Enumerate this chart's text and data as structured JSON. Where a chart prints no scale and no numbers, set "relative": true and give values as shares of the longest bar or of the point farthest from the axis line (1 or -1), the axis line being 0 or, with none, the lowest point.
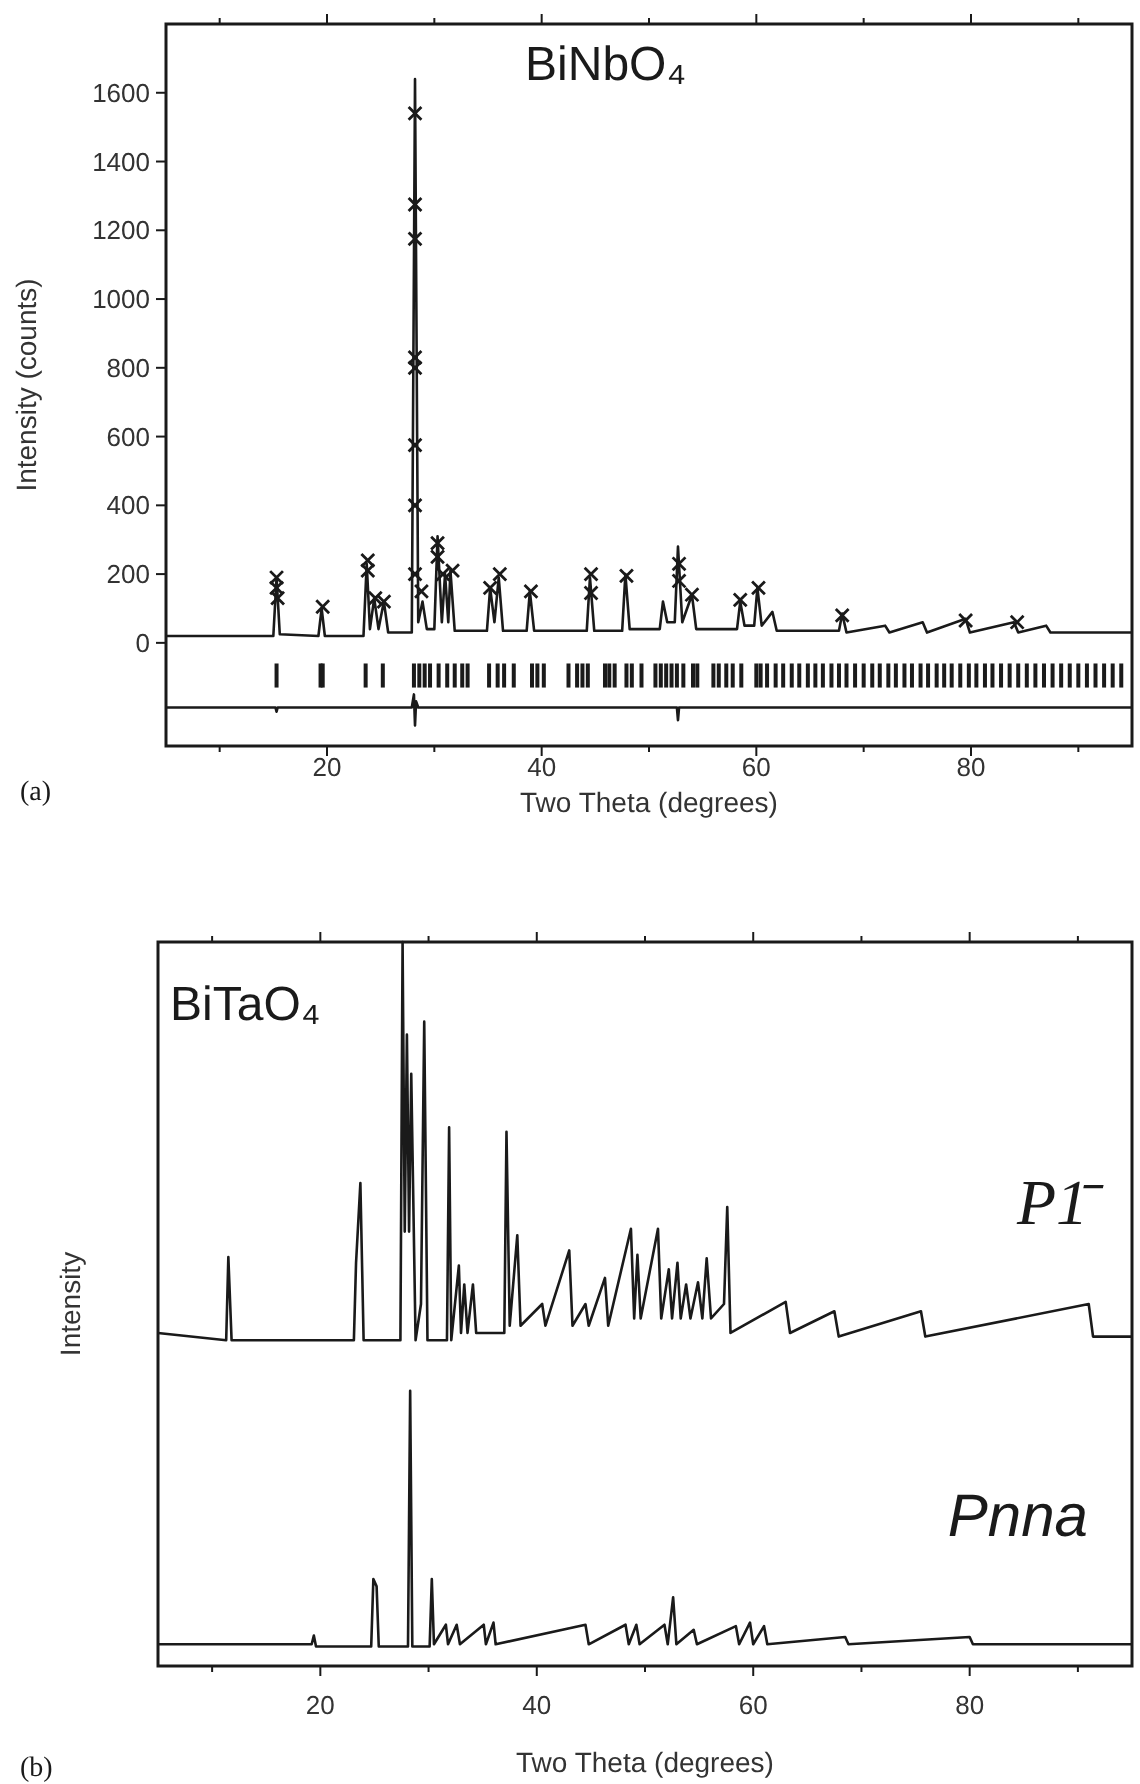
{
  "chart_data": [
    {
      "type": "line",
      "title": "BiNbO₄",
      "xlabel": "Two Theta (degrees)",
      "ylabel": "Intensity (counts)",
      "annotations": [
        "(a)"
      ],
      "xlim": [
        5,
        95
      ],
      "xticks": [
        {
          "value": 10,
          "label": null
        },
        20,
        {
          "value": 30,
          "label": null
        },
        40,
        {
          "value": 50,
          "label": null
        },
        60,
        {
          "value": 70,
          "label": null
        },
        80,
        {
          "value": 90,
          "label": null
        }
      ],
      "ylim": [
        -300,
        1800
      ],
      "yticks": [
        0,
        200,
        400,
        600,
        800,
        1000,
        1200,
        1400,
        1600
      ],
      "series": [
        {
          "type": "scatter",
          "marker": "cross",
          "color": "#1a1a1a",
          "x": [
            15.3,
            15.3,
            15.4,
            19.6,
            23.8,
            23.8,
            24.5,
            25.3,
            28.2,
            28.2,
            28.2,
            28.2,
            28.2,
            28.2,
            28.2,
            28.2,
            28.8,
            30.3,
            30.3,
            30.8,
            31.7,
            35.2,
            36.1,
            39.0,
            44.6,
            44.6,
            47.9,
            52.8,
            52.8,
            54.0,
            58.5,
            60.2,
            68.0,
            79.5,
            84.3
          ],
          "values": [
            190,
            160,
            130,
            105,
            240,
            210,
            130,
            120,
            1540,
            1275,
            1175,
            830,
            800,
            575,
            400,
            200,
            150,
            290,
            250,
            200,
            210,
            160,
            200,
            150,
            200,
            145,
            195,
            230,
            180,
            140,
            125,
            160,
            80,
            65,
            60
          ]
        },
        {
          "color": "#1a1a1a",
          "x": [
            5,
            15.0,
            15.3,
            15.6,
            19.2,
            19.5,
            19.8,
            23.4,
            23.7,
            24.0,
            24.4,
            24.8,
            25.3,
            25.7,
            27.9,
            28.2,
            28.5,
            28.9,
            29.3,
            30.0,
            30.3,
            30.7,
            31.0,
            31.3,
            31.5,
            31.9,
            34.9,
            35.2,
            35.6,
            36.0,
            36.4,
            38.6,
            38.9,
            39.3,
            44.2,
            44.5,
            44.9,
            47.5,
            47.8,
            48.2,
            51.0,
            51.3,
            51.7,
            52.4,
            52.7,
            53.1,
            54.0,
            54.4,
            58.2,
            58.5,
            58.9,
            59.8,
            60.1,
            60.5,
            61.5,
            61.9,
            67.7,
            68.0,
            68.4,
            72.0,
            72.4,
            75.5,
            75.9,
            79.5,
            79.9,
            84.0,
            84.4,
            87.0,
            87.4,
            95
          ],
          "values": [
            20,
            20,
            190,
            25,
            20,
            100,
            20,
            20,
            230,
            40,
            130,
            40,
            120,
            30,
            30,
            1640,
            60,
            120,
            40,
            40,
            310,
            60,
            200,
            60,
            210,
            35,
            35,
            160,
            60,
            190,
            35,
            35,
            150,
            35,
            35,
            190,
            35,
            35,
            200,
            40,
            40,
            120,
            60,
            60,
            280,
            60,
            140,
            40,
            40,
            120,
            50,
            50,
            160,
            50,
            90,
            35,
            35,
            85,
            30,
            50,
            30,
            60,
            30,
            70,
            30,
            60,
            30,
            50,
            30,
            30
          ]
        },
        {
          "type": "bar",
          "color": "#1a1a1a",
          "x": [
            15.3,
            19.4,
            19.6,
            23.6,
            25.2,
            28.1,
            28.6,
            29.1,
            29.6,
            30.4,
            31.2,
            31.9,
            32.6,
            33.1,
            35.1,
            35.9,
            36.5,
            37.4,
            39.1,
            39.6,
            40.2,
            42.5,
            43.3,
            43.8,
            44.3,
            45.9,
            46.3,
            46.8,
            47.9,
            48.4,
            49.3,
            50.6,
            51.1,
            51.6,
            52.1,
            52.6,
            53.2,
            54.1,
            54.5,
            56.0,
            56.5,
            57.2,
            57.8,
            58.6,
            60.0,
            60.4,
            61.0,
            61.8,
            62.5,
            63.3,
            64.0,
            64.8,
            65.5,
            66.2,
            67.0,
            67.7,
            68.4,
            69.2,
            70.0,
            70.8,
            71.5,
            72.3,
            73.0,
            73.8,
            74.5,
            75.3,
            76.0,
            76.8,
            77.5,
            78.2,
            79.0,
            79.8,
            80.5,
            81.3,
            82.0,
            82.8,
            83.6,
            84.4,
            85.2,
            86.0,
            86.8,
            87.6,
            88.4,
            89.2,
            90.0,
            90.8,
            91.6,
            92.4,
            93.2,
            94.0
          ],
          "base": [
            -130,
            -130,
            -130,
            -130,
            -130,
            -130,
            -130,
            -130,
            -130,
            -130,
            -130,
            -130,
            -130,
            -130,
            -130,
            -130,
            -130,
            -130,
            -130,
            -130,
            -130,
            -130,
            -130,
            -130,
            -130,
            -130,
            -130,
            -130,
            -130,
            -130,
            -130,
            -130,
            -130,
            -130,
            -130,
            -130,
            -130,
            -130,
            -130,
            -130,
            -130,
            -130,
            -130,
            -130,
            -130,
            -130,
            -130,
            -130,
            -130,
            -130,
            -130,
            -130,
            -130,
            -130,
            -130,
            -130,
            -130,
            -130,
            -130,
            -130,
            -130,
            -130,
            -130,
            -130,
            -130,
            -130,
            -130,
            -130,
            -130,
            -130,
            -130,
            -130,
            -130,
            -130,
            -130,
            -130,
            -130,
            -130,
            -130,
            -130,
            -130,
            -130,
            -130,
            -130,
            -130,
            -130,
            -130,
            -130,
            -130,
            -130
          ],
          "values": [
            70,
            70,
            70,
            70,
            70,
            70,
            70,
            70,
            70,
            70,
            70,
            70,
            70,
            70,
            70,
            70,
            70,
            70,
            70,
            70,
            70,
            70,
            70,
            70,
            70,
            70,
            70,
            70,
            70,
            70,
            70,
            70,
            70,
            70,
            70,
            70,
            70,
            70,
            70,
            70,
            70,
            70,
            70,
            70,
            70,
            70,
            70,
            70,
            70,
            70,
            70,
            70,
            70,
            70,
            70,
            70,
            70,
            70,
            70,
            70,
            70,
            70,
            70,
            70,
            70,
            70,
            70,
            70,
            70,
            70,
            70,
            70,
            70,
            70,
            70,
            70,
            70,
            70,
            70,
            70,
            70,
            70,
            70,
            70,
            70,
            70,
            70,
            70,
            70,
            70
          ]
        },
        {
          "color": "#1a1a1a",
          "x": [
            5,
            15.2,
            15.3,
            15.4,
            27.9,
            28.1,
            28.2,
            28.3,
            28.5,
            52.6,
            52.7,
            52.8,
            95
          ],
          "values": [
            -188,
            -188,
            -200,
            -188,
            -188,
            -150,
            -240,
            -170,
            -188,
            -188,
            -225,
            -188,
            -188
          ]
        }
      ]
    },
    {
      "type": "line",
      "relative": true,
      "title": "BiTaO₄",
      "xlabel": "Two Theta (degrees)",
      "ylabel": "Intensity",
      "annotations": [
        "(b)"
      ],
      "xlim": [
        5,
        95
      ],
      "xticks": [
        {
          "value": 10,
          "label": null
        },
        20,
        {
          "value": 30,
          "label": null
        },
        40,
        {
          "value": 50,
          "label": null
        },
        60,
        {
          "value": 70,
          "label": null
        },
        80,
        {
          "value": 90,
          "label": null
        }
      ],
      "series": [
        {
          "name": "P1̄",
          "color": "#1a1a1a",
          "x": [
            5,
            11.3,
            11.5,
            11.8,
            23.1,
            23.3,
            23.7,
            24.0,
            27.4,
            27.6,
            27.8,
            28.0,
            28.2,
            28.4,
            28.8,
            29.3,
            29.6,
            29.9,
            31.7,
            31.9,
            32.1,
            32.8,
            33.0,
            33.3,
            33.6,
            34.1,
            34.4,
            37.0,
            37.2,
            37.5,
            38.2,
            38.5,
            40.5,
            40.8,
            43.0,
            43.3,
            44.5,
            44.8,
            46.3,
            46.6,
            48.7,
            49.0,
            49.3,
            49.6,
            51.2,
            51.5,
            52.2,
            52.5,
            53.0,
            53.3,
            53.8,
            54.2,
            54.9,
            55.3,
            55.7,
            56.1,
            57.3,
            57.6,
            57.9,
            63.0,
            63.4,
            67.5,
            67.9,
            75.5,
            75.9,
            91.0,
            91.4,
            95
          ],
          "values": [
            0.46,
            0.45,
            0.565,
            0.45,
            0.45,
            0.557,
            0.667,
            0.45,
            0.45,
            1.0,
            0.6,
            0.872,
            0.6,
            0.818,
            0.45,
            0.5,
            0.89,
            0.45,
            0.45,
            0.744,
            0.45,
            0.553,
            0.46,
            0.527,
            0.46,
            0.527,
            0.46,
            0.46,
            0.738,
            0.47,
            0.595,
            0.47,
            0.5,
            0.47,
            0.574,
            0.47,
            0.5,
            0.47,
            0.536,
            0.47,
            0.604,
            0.48,
            0.568,
            0.48,
            0.604,
            0.48,
            0.548,
            0.48,
            0.557,
            0.48,
            0.527,
            0.48,
            0.53,
            0.48,
            0.563,
            0.48,
            0.5,
            0.634,
            0.46,
            0.503,
            0.46,
            0.49,
            0.455,
            0.49,
            0.455,
            0.5,
            0.455,
            0.455
          ]
        },
        {
          "name": "Pnna",
          "color": "#1a1a1a",
          "x": [
            5,
            19.2,
            19.4,
            19.6,
            24.7,
            24.9,
            25.2,
            25.4,
            28.1,
            28.3,
            28.5,
            30.1,
            30.3,
            30.5,
            31.6,
            31.8,
            32.6,
            32.9,
            35.1,
            35.3,
            36.0,
            36.2,
            44.5,
            44.8,
            48.2,
            48.5,
            49.2,
            49.5,
            51.8,
            52.1,
            52.6,
            52.9,
            54.5,
            54.8,
            58.4,
            58.7,
            59.7,
            60.0,
            61.0,
            61.3,
            68.5,
            68.8,
            80.0,
            80.3,
            95
          ],
          "values": [
            0.03,
            0.03,
            0.042,
            0.027,
            0.027,
            0.12,
            0.11,
            0.027,
            0.027,
            0.38,
            0.027,
            0.027,
            0.12,
            0.03,
            0.057,
            0.03,
            0.057,
            0.03,
            0.057,
            0.03,
            0.06,
            0.03,
            0.057,
            0.03,
            0.057,
            0.03,
            0.057,
            0.03,
            0.057,
            0.03,
            0.095,
            0.03,
            0.05,
            0.03,
            0.055,
            0.03,
            0.06,
            0.03,
            0.055,
            0.03,
            0.04,
            0.03,
            0.04,
            0.03,
            0.03
          ]
        }
      ]
    }
  ]
}
